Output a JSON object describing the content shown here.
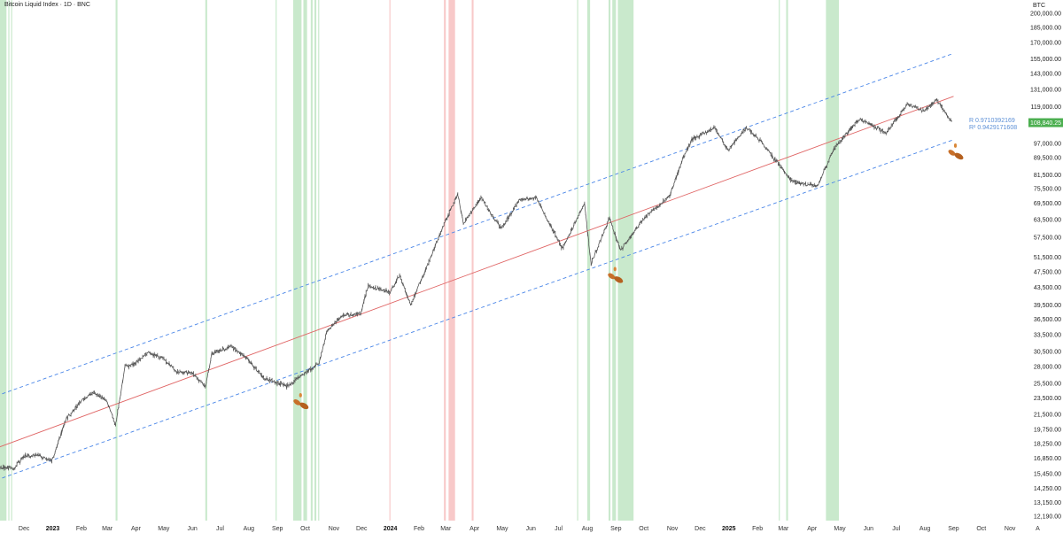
{
  "chart_data": {
    "type": "line",
    "title": "Bitcoin Liquid Index · 1D · BNC",
    "unit": "BTC",
    "y_scale": "log",
    "ylim": [
      12190,
      200000
    ],
    "x_range": [
      "2022-11-05",
      "2025-11-20"
    ],
    "y_ticks": [
      "200,000.00",
      "185,000.00",
      "170,000.00",
      "155,000.00",
      "143,000.00",
      "131,000.00",
      "119,000.00",
      "97,000.00",
      "89,500.00",
      "81,500.00",
      "75,500.00",
      "69,500.00",
      "63,500.00",
      "57,500.00",
      "51,500.00",
      "47,500.00",
      "43,500.00",
      "39,500.00",
      "36,500.00",
      "33,500.00",
      "30,500.00",
      "28,000.00",
      "25,500.00",
      "23,500.00",
      "21,500.00",
      "19,750.00",
      "18,250.00",
      "16,850.00",
      "15,450.00",
      "14,250.00",
      "13,150.00",
      "12,190.00"
    ],
    "x_ticks": [
      {
        "label": "Dec",
        "date": "2022-12-01"
      },
      {
        "label": "2023",
        "date": "2023-01-01",
        "year": true
      },
      {
        "label": "Feb",
        "date": "2023-02-01"
      },
      {
        "label": "Mar",
        "date": "2023-03-01"
      },
      {
        "label": "Apr",
        "date": "2023-04-01"
      },
      {
        "label": "May",
        "date": "2023-05-01"
      },
      {
        "label": "Jun",
        "date": "2023-06-01"
      },
      {
        "label": "Jul",
        "date": "2023-07-01"
      },
      {
        "label": "Aug",
        "date": "2023-08-01"
      },
      {
        "label": "Sep",
        "date": "2023-09-01"
      },
      {
        "label": "Oct",
        "date": "2023-10-01"
      },
      {
        "label": "Nov",
        "date": "2023-11-01"
      },
      {
        "label": "Dec",
        "date": "2023-12-01"
      },
      {
        "label": "2024",
        "date": "2024-01-01",
        "year": true
      },
      {
        "label": "Feb",
        "date": "2024-02-01"
      },
      {
        "label": "Mar",
        "date": "2024-03-01"
      },
      {
        "label": "Apr",
        "date": "2024-04-01"
      },
      {
        "label": "May",
        "date": "2024-05-01"
      },
      {
        "label": "Jun",
        "date": "2024-06-01"
      },
      {
        "label": "Jul",
        "date": "2024-07-01"
      },
      {
        "label": "Aug",
        "date": "2024-08-01"
      },
      {
        "label": "Sep",
        "date": "2024-09-01"
      },
      {
        "label": "Oct",
        "date": "2024-10-01"
      },
      {
        "label": "Nov",
        "date": "2024-11-01"
      },
      {
        "label": "Dec",
        "date": "2024-12-01"
      },
      {
        "label": "2025",
        "date": "2025-01-01",
        "year": true
      },
      {
        "label": "Feb",
        "date": "2025-02-01"
      },
      {
        "label": "Mar",
        "date": "2025-03-01"
      },
      {
        "label": "Apr",
        "date": "2025-04-01"
      },
      {
        "label": "May",
        "date": "2025-05-01"
      },
      {
        "label": "Jun",
        "date": "2025-06-01"
      },
      {
        "label": "Jul",
        "date": "2025-07-01"
      },
      {
        "label": "Aug",
        "date": "2025-08-01"
      },
      {
        "label": "Sep",
        "date": "2025-09-01"
      },
      {
        "label": "Oct",
        "date": "2025-10-01"
      },
      {
        "label": "Nov",
        "date": "2025-11-01"
      },
      {
        "label": "A",
        "date": "2025-12-01"
      }
    ],
    "series": [
      {
        "type": "price",
        "color": "#555555",
        "points": [
          [
            "2022-11-05",
            16000
          ],
          [
            "2022-11-20",
            15900
          ],
          [
            "2022-12-01",
            17000
          ],
          [
            "2022-12-15",
            17200
          ],
          [
            "2022-12-31",
            16550
          ],
          [
            "2023-01-15",
            20800
          ],
          [
            "2023-01-31",
            23100
          ],
          [
            "2023-02-15",
            24300
          ],
          [
            "2023-02-28",
            23200
          ],
          [
            "2023-03-10",
            20300
          ],
          [
            "2023-03-20",
            28000
          ],
          [
            "2023-03-31",
            28400
          ],
          [
            "2023-04-14",
            30400
          ],
          [
            "2023-04-30",
            29300
          ],
          [
            "2023-05-15",
            27200
          ],
          [
            "2023-05-31",
            27100
          ],
          [
            "2023-06-15",
            25100
          ],
          [
            "2023-06-22",
            30100
          ],
          [
            "2023-07-13",
            31400
          ],
          [
            "2023-07-31",
            29200
          ],
          [
            "2023-08-17",
            26300
          ],
          [
            "2023-09-11",
            25100
          ],
          [
            "2023-09-30",
            26900
          ],
          [
            "2023-10-16",
            28500
          ],
          [
            "2023-10-24",
            34000
          ],
          [
            "2023-11-10",
            37300
          ],
          [
            "2023-11-30",
            37700
          ],
          [
            "2023-12-08",
            44000
          ],
          [
            "2023-12-31",
            42300
          ],
          [
            "2024-01-11",
            46500
          ],
          [
            "2024-01-23",
            39500
          ],
          [
            "2024-02-15",
            52000
          ],
          [
            "2024-02-28",
            62000
          ],
          [
            "2024-03-14",
            73000
          ],
          [
            "2024-03-20",
            62000
          ],
          [
            "2024-04-08",
            71600
          ],
          [
            "2024-04-30",
            60500
          ],
          [
            "2024-05-20",
            71000
          ],
          [
            "2024-06-07",
            71500
          ],
          [
            "2024-06-24",
            60300
          ],
          [
            "2024-07-05",
            54000
          ],
          [
            "2024-07-29",
            69500
          ],
          [
            "2024-08-05",
            49500
          ],
          [
            "2024-08-25",
            64000
          ],
          [
            "2024-09-06",
            53500
          ],
          [
            "2024-09-30",
            63500
          ],
          [
            "2024-10-29",
            72500
          ],
          [
            "2024-11-12",
            88500
          ],
          [
            "2024-11-22",
            99000
          ],
          [
            "2024-12-17",
            106000
          ],
          [
            "2024-12-31",
            93400
          ],
          [
            "2025-01-20",
            106000
          ],
          [
            "2025-02-05",
            98000
          ],
          [
            "2025-02-28",
            84000
          ],
          [
            "2025-03-10",
            78500
          ],
          [
            "2025-04-07",
            76500
          ],
          [
            "2025-04-25",
            94500
          ],
          [
            "2025-05-22",
            111000
          ],
          [
            "2025-06-20",
            103000
          ],
          [
            "2025-07-14",
            121000
          ],
          [
            "2025-07-31",
            116000
          ],
          [
            "2025-08-14",
            123500
          ],
          [
            "2025-08-31",
            108800
          ]
        ]
      },
      {
        "type": "regression",
        "color": "#e06666",
        "from": [
          "2022-11-01",
          17800
        ],
        "to": [
          "2025-09-01",
          126000
        ]
      },
      {
        "type": "upper-band",
        "color": "#4a86e8",
        "dashed": true,
        "from": [
          "2022-11-01",
          23800
        ],
        "to": [
          "2025-09-01",
          160000
        ]
      },
      {
        "type": "lower-band",
        "color": "#4a86e8",
        "dashed": true,
        "from": [
          "2022-11-01",
          14900
        ],
        "to": [
          "2025-09-01",
          99000
        ]
      }
    ],
    "green_zones": [
      [
        "2022-11-05",
        "2022-11-12"
      ],
      [
        "2022-11-14",
        "2022-11-15"
      ],
      [
        "2022-11-17",
        "2022-11-18"
      ],
      [
        "2023-03-10",
        "2023-03-12"
      ],
      [
        "2023-06-15",
        "2023-06-17"
      ],
      [
        "2023-08-30",
        "2023-08-31"
      ],
      [
        "2023-09-18",
        "2023-09-27"
      ],
      [
        "2023-09-29",
        "2023-10-03"
      ],
      [
        "2023-10-07",
        "2023-10-09"
      ],
      [
        "2023-10-11",
        "2023-10-13"
      ],
      [
        "2023-10-15",
        "2023-10-16"
      ],
      [
        "2024-07-21",
        "2024-07-22"
      ],
      [
        "2024-08-01",
        "2024-08-04"
      ],
      [
        "2024-08-24",
        "2024-08-26"
      ],
      [
        "2024-08-28",
        "2024-09-01"
      ],
      [
        "2024-09-03",
        "2024-09-20"
      ],
      [
        "2025-02-24",
        "2025-02-25"
      ],
      [
        "2025-03-04",
        "2025-03-06"
      ],
      [
        "2025-04-16",
        "2025-04-30"
      ]
    ],
    "red_zones": [
      [
        "2023-12-31",
        "2024-01-01"
      ],
      [
        "2024-02-28",
        "2024-03-01"
      ],
      [
        "2024-03-04",
        "2024-03-11"
      ],
      [
        "2024-03-29",
        "2024-03-31"
      ]
    ],
    "markers": [
      {
        "date": "2023-09-25",
        "value": 23200
      },
      {
        "date": "2024-08-30",
        "value": 46800
      },
      {
        "date": "2025-09-02",
        "value": 93000
      }
    ],
    "annotations": [
      {
        "label": "R",
        "value": "0.9710392169"
      },
      {
        "label": "R²",
        "value": "0.9429171608"
      }
    ],
    "last_price": {
      "label": "108,840.25",
      "value": 108840.25,
      "color": "#4caf50"
    },
    "grid": false
  }
}
